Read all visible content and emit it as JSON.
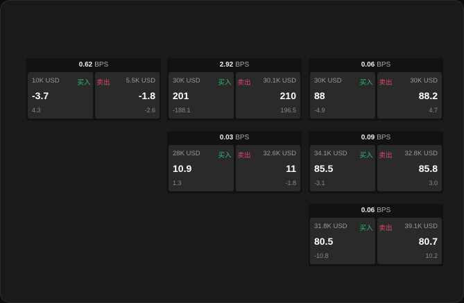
{
  "colors": {
    "buy": "#2fbf6b",
    "sell": "#e5456a"
  },
  "unit": "BPS",
  "buy_label": "买入",
  "sell_label": "卖出",
  "quotes": [
    {
      "spread": "0.62",
      "buy": {
        "qty": "10K USD",
        "price": "-3.7",
        "change": "4.3"
      },
      "sell": {
        "qty": "5.5K USD",
        "price": "-1.8",
        "change": "-2.6"
      }
    },
    {
      "spread": "2.92",
      "buy": {
        "qty": "30K USD",
        "price": "201",
        "change": "-188.1"
      },
      "sell": {
        "qty": "30.1K USD",
        "price": "210",
        "change": "196.5"
      }
    },
    {
      "spread": "0.06",
      "buy": {
        "qty": "30K USD",
        "price": "88",
        "change": "-4.9"
      },
      "sell": {
        "qty": "30K USD",
        "price": "88.2",
        "change": "4.7"
      }
    },
    {
      "spread": "0.03",
      "buy": {
        "qty": "28K USD",
        "price": "10.9",
        "change": "1.3"
      },
      "sell": {
        "qty": "32.6K USD",
        "price": "11",
        "change": "-1.8"
      }
    },
    {
      "spread": "0.09",
      "buy": {
        "qty": "34.1K USD",
        "price": "85.5",
        "change": "-3.1"
      },
      "sell": {
        "qty": "32.8K USD",
        "price": "85.8",
        "change": "3.0"
      }
    },
    {
      "spread": "0.06",
      "buy": {
        "qty": "31.8K USD",
        "price": "80.5",
        "change": "-10.8"
      },
      "sell": {
        "qty": "39.1K USD",
        "price": "80.7",
        "change": "10.2"
      }
    }
  ]
}
